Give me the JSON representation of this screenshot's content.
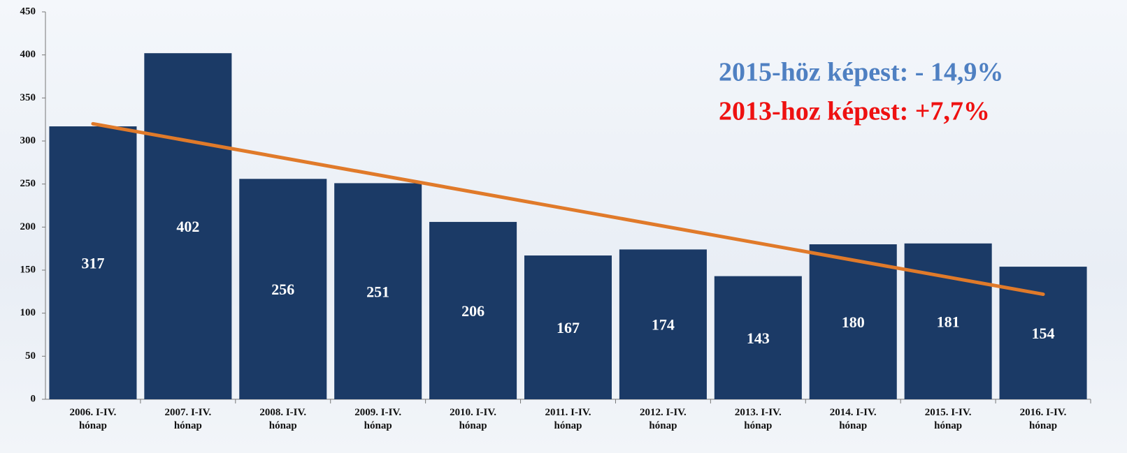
{
  "chart_data": {
    "type": "bar",
    "categories": [
      "2006. I-IV. hónap",
      "2007. I-IV. hónap",
      "2008. I-IV. hónap",
      "2009. I-IV. hónap",
      "2010. I-IV. hónap",
      "2011. I-IV. hónap",
      "2012. I-IV. hónap",
      "2013. I-IV. hónap",
      "2014. I-IV. hónap",
      "2015. I-IV. hónap",
      "2016. I-IV. hónap"
    ],
    "values": [
      317,
      402,
      256,
      251,
      206,
      167,
      174,
      143,
      180,
      181,
      154
    ],
    "color": "#1b3a66",
    "ylim": [
      0,
      450
    ],
    "yticks": [
      0,
      50,
      100,
      150,
      200,
      250,
      300,
      350,
      400,
      450
    ],
    "trend": {
      "start": 320,
      "end": 122,
      "color": "#e07a2a"
    },
    "annotations": [
      {
        "text": "2015-höz képest: - 14,9%",
        "color": "#4f80c2"
      },
      {
        "text": "2013-hoz képest: +7,7%",
        "color": "#ee1111"
      }
    ]
  }
}
